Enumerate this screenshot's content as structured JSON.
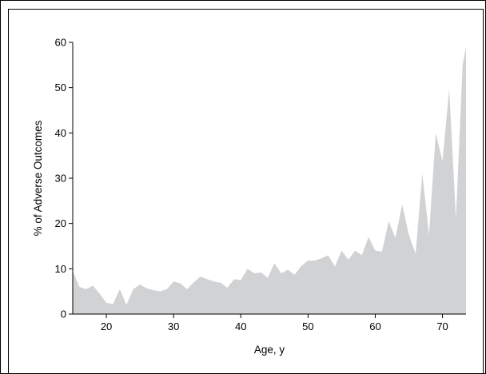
{
  "chart_data": {
    "type": "area",
    "title": "",
    "xlabel": "Age, y",
    "ylabel": "% of Adverse Outcomes",
    "xlim": [
      15,
      73.5
    ],
    "ylim": [
      0,
      60
    ],
    "x_ticks": [
      20,
      30,
      40,
      50,
      60,
      70
    ],
    "y_ticks": [
      0,
      10,
      20,
      30,
      40,
      50,
      60
    ],
    "grid": false,
    "legend": "none",
    "fill_color": "#d1d2d4",
    "x": [
      15,
      16,
      17,
      18,
      19,
      20,
      21,
      22,
      23,
      24,
      25,
      26,
      27,
      28,
      29,
      30,
      31,
      32,
      33,
      34,
      35,
      36,
      37,
      38,
      39,
      40,
      41,
      42,
      43,
      44,
      45,
      46,
      47,
      48,
      49,
      50,
      51,
      52,
      53,
      54,
      55,
      56,
      57,
      58,
      59,
      60,
      61,
      62,
      63,
      64,
      65,
      66,
      67,
      68,
      69,
      70,
      71,
      72,
      73,
      73.5
    ],
    "series": [
      {
        "values": [
          9.5,
          6,
          5.5,
          6.3,
          4.5,
          2.5,
          2.2,
          5.5,
          2,
          5.5,
          6.5,
          5.7,
          5.3,
          5,
          5.5,
          7.2,
          6.8,
          5.5,
          7,
          8.3,
          7.7,
          7.2,
          6.9,
          5.8,
          7.7,
          7.5,
          10,
          9,
          9.2,
          8,
          11.2,
          9,
          9.8,
          8.7,
          10.6,
          11.8,
          11.8,
          12.3,
          13,
          10.5,
          14,
          12,
          14,
          13,
          17,
          14,
          13.8,
          20.5,
          16.8,
          24.2,
          17.5,
          13.3,
          31,
          17.5,
          40,
          33.8,
          49.7,
          21,
          55,
          59
        ]
      }
    ]
  }
}
